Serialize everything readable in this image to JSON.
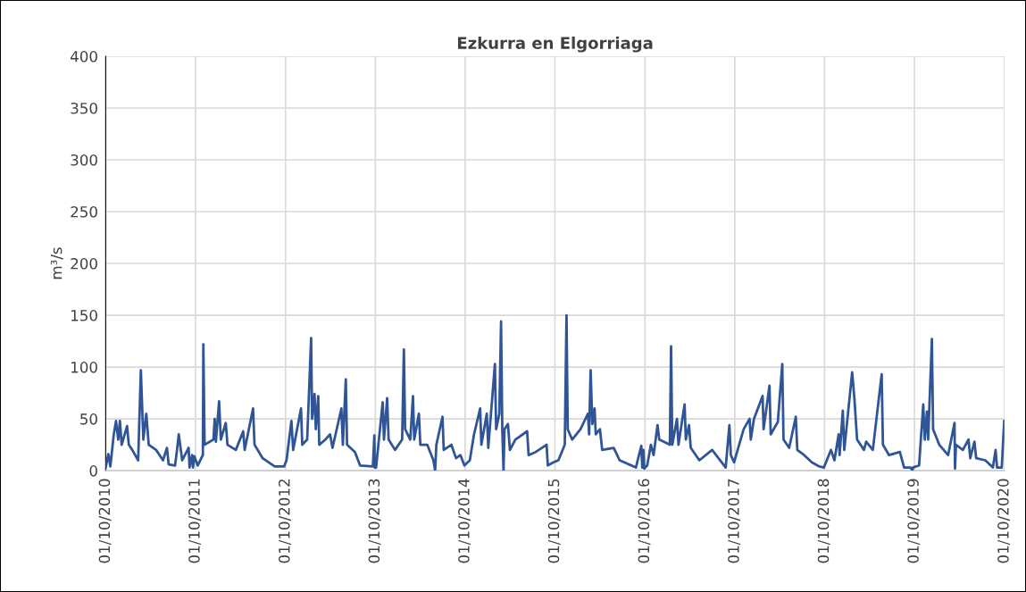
{
  "chart_data": {
    "type": "line",
    "title": "Ezkurra en Elgorriaga",
    "ylabel": "m³/s",
    "xlim": [
      "2010-10-01",
      "2020-10-01"
    ],
    "xticks": [
      {
        "value": "2010-10-01",
        "label": "01/10/2010"
      },
      {
        "value": "2011-10-01",
        "label": "01/10/2011"
      },
      {
        "value": "2012-10-01",
        "label": "01/10/2012"
      },
      {
        "value": "2013-10-01",
        "label": "01/10/2013"
      },
      {
        "value": "2014-10-01",
        "label": "01/10/2014"
      },
      {
        "value": "2015-10-01",
        "label": "01/10/2015"
      },
      {
        "value": "2016-10-01",
        "label": "01/10/2016"
      },
      {
        "value": "2017-10-01",
        "label": "01/10/2017"
      },
      {
        "value": "2018-10-01",
        "label": "01/10/2018"
      },
      {
        "value": "2019-10-01",
        "label": "01/10/2019"
      },
      {
        "value": "2020-10-01",
        "label": "01/10/2020"
      }
    ],
    "ylim": [
      0,
      400
    ],
    "yticks": [
      0,
      50,
      100,
      150,
      200,
      250,
      300,
      350,
      400
    ],
    "grid": true,
    "legend": false,
    "marker": "none",
    "line_style": "solid",
    "series": [
      {
        "color": "#2f5597",
        "x": [
          "2010-10-01",
          "2010-10-12",
          "2010-10-20",
          "2010-11-03",
          "2010-11-12",
          "2010-11-21",
          "2010-11-28",
          "2010-12-05",
          "2010-12-27",
          "2011-01-03",
          "2011-01-17",
          "2011-02-10",
          "2011-02-21",
          "2011-02-28",
          "2011-03-03",
          "2011-03-15",
          "2011-03-25",
          "2011-04-24",
          "2011-05-22",
          "2011-06-07",
          "2011-06-14",
          "2011-07-10",
          "2011-07-18",
          "2011-07-25",
          "2011-08-08",
          "2011-09-03",
          "2011-09-07",
          "2011-09-17",
          "2011-09-21",
          "2011-09-26",
          "2011-10-10",
          "2011-10-31",
          "2011-11-02",
          "2011-11-07",
          "2011-12-13",
          "2011-12-18",
          "2011-12-23",
          "2012-01-05",
          "2012-01-12",
          "2012-02-01",
          "2012-02-08",
          "2012-03-13",
          "2012-04-12",
          "2012-04-18",
          "2012-05-22",
          "2012-05-28",
          "2012-06-30",
          "2012-08-18",
          "2012-09-25",
          "2012-10-05",
          "2012-10-25",
          "2012-11-01",
          "2012-12-03",
          "2012-12-08",
          "2012-12-28",
          "2013-01-13",
          "2013-01-17",
          "2013-01-27",
          "2013-02-01",
          "2013-02-11",
          "2013-02-15",
          "2013-03-12",
          "2013-03-31",
          "2013-04-10",
          "2013-05-16",
          "2013-05-22",
          "2013-06-03",
          "2013-06-08",
          "2013-07-10",
          "2013-07-31",
          "2013-09-21",
          "2013-09-27",
          "2013-09-29",
          "2013-10-01",
          "2013-10-04",
          "2013-10-31",
          "2013-11-05",
          "2013-11-18",
          "2013-11-24",
          "2013-12-20",
          "2014-01-18",
          "2014-01-25",
          "2014-01-30",
          "2014-02-20",
          "2014-03-03",
          "2014-03-08",
          "2014-03-27",
          "2014-04-02",
          "2014-04-30",
          "2014-05-25",
          "2014-06-01",
          "2014-06-06",
          "2014-07-01",
          "2014-07-06",
          "2014-08-06",
          "2014-08-25",
          "2014-09-12",
          "2014-09-28",
          "2014-10-20",
          "2014-11-06",
          "2014-12-01",
          "2014-12-06",
          "2014-12-28",
          "2015-01-03",
          "2015-01-30",
          "2015-02-04",
          "2015-02-17",
          "2015-02-24",
          "2015-03-01",
          "2015-03-06",
          "2015-03-10",
          "2015-03-24",
          "2015-04-01",
          "2015-04-23",
          "2015-06-10",
          "2015-06-16",
          "2015-07-15",
          "2015-08-28",
          "2015-09-02",
          "2015-09-25",
          "2015-10-15",
          "2015-11-10",
          "2015-11-17",
          "2015-11-22",
          "2015-12-10",
          "2016-01-13",
          "2016-02-12",
          "2016-02-17",
          "2016-02-23",
          "2016-03-01",
          "2016-03-10",
          "2016-03-15",
          "2016-04-01",
          "2016-04-10",
          "2016-05-27",
          "2016-06-20",
          "2016-08-25",
          "2016-09-16",
          "2016-09-20",
          "2016-09-25",
          "2016-09-28",
          "2016-10-10",
          "2016-10-25",
          "2016-11-05",
          "2016-11-21",
          "2016-11-28",
          "2017-01-10",
          "2017-01-15",
          "2017-01-20",
          "2017-02-08",
          "2017-02-14",
          "2017-03-11",
          "2017-03-16",
          "2017-03-29",
          "2017-04-05",
          "2017-05-10",
          "2017-07-01",
          "2017-08-25",
          "2017-09-09",
          "2017-09-15",
          "2017-09-28",
          "2017-11-06",
          "2017-11-30",
          "2017-12-05",
          "2017-12-18",
          "2018-01-22",
          "2018-01-26",
          "2018-02-19",
          "2018-02-24",
          "2018-03-25",
          "2018-04-12",
          "2018-04-17",
          "2018-05-10",
          "2018-06-06",
          "2018-06-12",
          "2018-07-10",
          "2018-08-10",
          "2018-09-10",
          "2018-09-28",
          "2018-10-27",
          "2018-11-10",
          "2018-11-27",
          "2018-12-01",
          "2018-12-14",
          "2018-12-20",
          "2019-01-21",
          "2019-01-30",
          "2019-02-10",
          "2019-03-10",
          "2019-03-19",
          "2019-04-15",
          "2019-05-21",
          "2019-05-26",
          "2019-06-20",
          "2019-08-03",
          "2019-08-20",
          "2019-09-15",
          "2019-09-23",
          "2019-09-25",
          "2019-10-20",
          "2019-11-06",
          "2019-11-12",
          "2019-11-21",
          "2019-11-26",
          "2019-12-11",
          "2019-12-16",
          "2020-01-10",
          "2020-02-15",
          "2020-03-12",
          "2020-03-14",
          "2020-03-18",
          "2020-04-15",
          "2020-05-08",
          "2020-05-15",
          "2020-06-01",
          "2020-06-08",
          "2020-07-15",
          "2020-08-15",
          "2020-08-26",
          "2020-09-01",
          "2020-09-20",
          "2020-09-30"
        ],
        "values": [
          3,
          16,
          4,
          35,
          48,
          30,
          48,
          25,
          43,
          25,
          20,
          10,
          97,
          50,
          30,
          55,
          25,
          20,
          10,
          22,
          6,
          5,
          20,
          35,
          10,
          22,
          3,
          15,
          3,
          14,
          5,
          15,
          122,
          25,
          30,
          50,
          28,
          67,
          30,
          46,
          25,
          20,
          38,
          20,
          60,
          25,
          12,
          4,
          4,
          10,
          48,
          20,
          60,
          25,
          30,
          128,
          50,
          74,
          40,
          72,
          25,
          30,
          35,
          22,
          60,
          25,
          88,
          25,
          18,
          5,
          4,
          34,
          3,
          10,
          3,
          66,
          30,
          70,
          30,
          20,
          30,
          117,
          40,
          30,
          72,
          30,
          55,
          25,
          25,
          10,
          0,
          25,
          52,
          20,
          25,
          12,
          15,
          5,
          10,
          35,
          60,
          25,
          55,
          22,
          103,
          40,
          55,
          144,
          40,
          0,
          40,
          45,
          20,
          30,
          38,
          15,
          18,
          25,
          5,
          8,
          10,
          25,
          150,
          40,
          30,
          40,
          55,
          35,
          97,
          45,
          60,
          35,
          40,
          20,
          22,
          10,
          3,
          24,
          3,
          20,
          2,
          5,
          25,
          15,
          44,
          30,
          25,
          120,
          25,
          50,
          25,
          64,
          30,
          44,
          22,
          10,
          20,
          3,
          44,
          15,
          8,
          40,
          50,
          30,
          50,
          72,
          40,
          82,
          35,
          47,
          103,
          30,
          22,
          52,
          20,
          15,
          8,
          4,
          3,
          20,
          10,
          35,
          15,
          58,
          20,
          95,
          70,
          30,
          20,
          28,
          20,
          93,
          25,
          15,
          18,
          3,
          3,
          0,
          3,
          5,
          64,
          30,
          57,
          30,
          127,
          40,
          25,
          15,
          46,
          2,
          25,
          20,
          30,
          12,
          28,
          12,
          10,
          3,
          20,
          3,
          3,
          48
        ]
      }
    ]
  }
}
